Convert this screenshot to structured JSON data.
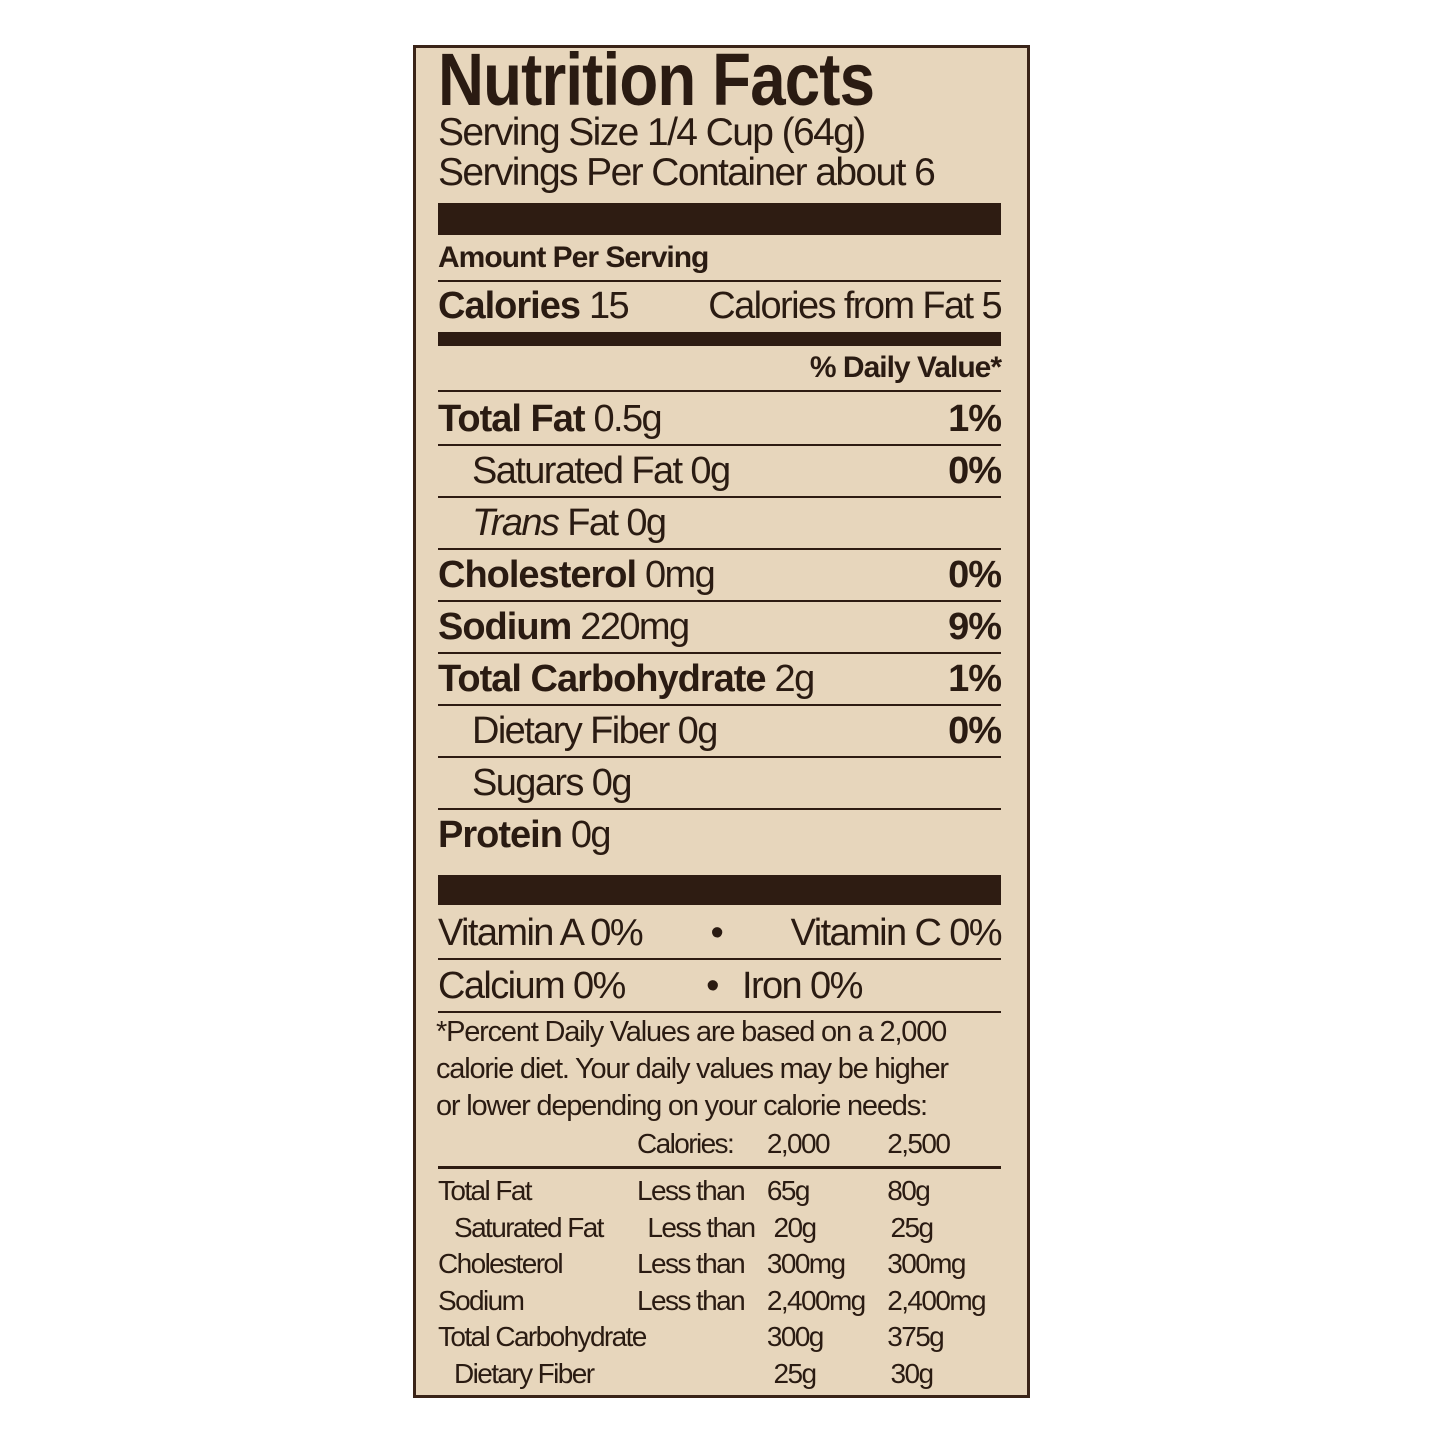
{
  "title": "Nutrition Facts",
  "serving_size": "Serving Size 1/4 Cup (64g)",
  "servings_per_container": "Servings Per Container about 6",
  "amount_per_serving": "Amount Per Serving",
  "calories": {
    "label": "Calories",
    "value": "15",
    "from_fat": "Calories from Fat 5"
  },
  "daily_value_header": "% Daily Value*",
  "nutrients": [
    {
      "label": "Total Fat",
      "amount": "0.5g",
      "dv": "1%",
      "bold": true
    },
    {
      "label": "Saturated Fat",
      "amount": "0g",
      "dv": "0%",
      "bold": false
    },
    {
      "label": "Trans",
      "label_suffix": "Fat",
      "amount": "0g",
      "dv": "",
      "bold": false
    },
    {
      "label": "Cholesterol",
      "amount": "0mg",
      "dv": "0%",
      "bold": true
    },
    {
      "label": "Sodium",
      "amount": "220mg",
      "dv": "9%",
      "bold": true
    },
    {
      "label": "Total Carbohydrate",
      "amount": "2g",
      "dv": "1%",
      "bold": true
    },
    {
      "label": "Dietary Fiber",
      "amount": "0g",
      "dv": "0%",
      "bold": false
    },
    {
      "label": "Sugars",
      "amount": "0g",
      "dv": "",
      "bold": false
    },
    {
      "label": "Protein",
      "amount": "0g",
      "dv": "",
      "bold": true
    }
  ],
  "vitamins": [
    {
      "left": "Vitamin A 0%",
      "right": "Vitamin C 0%"
    },
    {
      "left": "Calcium 0%",
      "right": "Iron 0%"
    }
  ],
  "separator": "•",
  "footnote": [
    "*Percent Daily Values are based on a 2,000",
    "calorie diet. Your daily values may be higher",
    "or lower depending on your calorie needs:"
  ],
  "reference_table": {
    "header": [
      "",
      "Calories:",
      "2,000",
      "2,500"
    ],
    "rows": [
      [
        "Total Fat",
        "Less than",
        "65g",
        "80g"
      ],
      [
        "Saturated Fat",
        "Less than",
        "20g",
        "25g"
      ],
      [
        "Cholesterol",
        "Less than",
        "300mg",
        "300mg"
      ],
      [
        "Sodium",
        "Less than",
        "2,400mg",
        "2,400mg"
      ],
      [
        "Total Carbohydrate",
        "",
        "300g",
        "375g"
      ],
      [
        "Dietary Fiber",
        "",
        "25g",
        "30g"
      ]
    ]
  },
  "colors": {
    "background": "#e7d6bc",
    "ink": "#2a1b12"
  }
}
